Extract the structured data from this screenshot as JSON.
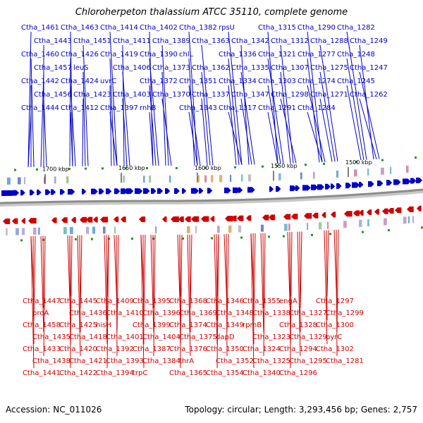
{
  "title": "Chloroherpeton thalassium ATCC 35110, complete genome",
  "accession": "Accession: NC_011026",
  "summary": "Topology: circular; Length: 3,293,456 bp; Genes: 2,757",
  "colors": {
    "forward": "#0000c8",
    "reverse": "#d00000",
    "backbone": "#8c8c8c",
    "marker": "#1a9a1a"
  },
  "ticks": [
    "1700 kbp",
    "1650 kbp",
    "1600 kbp",
    "1550 kbp",
    "1500 kbp"
  ],
  "forward_labels": [
    "Ctha_1461",
    "Ctha_1443",
    "Ctha_1460",
    "Ctha_1457",
    "Ctha_1442",
    "Ctha_1456",
    "Ctha_1444",
    "Ctha_1463",
    "Ctha_1451",
    "Ctha_1426",
    "leuS",
    "Ctha_1424",
    "Ctha_1423",
    "Ctha_1412",
    "Ctha_1414",
    "Ctha_1411",
    "Ctha_1419",
    "Ctha_1406",
    "uvrC",
    "Ctha_1403",
    "Ctha_1397",
    "Ctha_1402",
    "Ctha_1389",
    "Ctha_1390",
    "Ctha_1373",
    "Ctha_1372",
    "Ctha_1370",
    "rnhB",
    "Ctha_1382",
    "Ctha_1363",
    "chlL",
    "Ctha_1362",
    "Ctha_1351",
    "Ctha_1337",
    "Ctha_1343",
    "rpsU",
    "Ctha_1342",
    "Ctha_1336",
    "Ctha_1335",
    "Ctha_1334",
    "Ctha_1347",
    "Ctha_1317",
    "Ctha_1315",
    "Ctha_1312",
    "Ctha_1321",
    "Ctha_1307",
    "Ctha_1303",
    "Ctha_1298",
    "Ctha_1291",
    "Ctha_1290",
    "Ctha_1288",
    "Ctha_1277",
    "Ctha_1275",
    "Ctha_1274",
    "Ctha_1271",
    "Ctha_1284",
    "Ctha_1282",
    "Ctha_1249",
    "Ctha_1248",
    "Ctha_1247",
    "Ctha_1245",
    "Ctha_1262"
  ],
  "reverse_labels": [
    "Ctha_1447",
    "proA",
    "Ctha_1458",
    "Ctha_1435",
    "Ctha_1433",
    "Ctha_1438",
    "Ctha_1441",
    "Ctha_1445",
    "Ctha_1436",
    "Ctha_1425",
    "Ctha_1418",
    "Ctha_1420",
    "Ctha_1421",
    "Ctha_1422",
    "Ctha_1409",
    "Ctha_1410",
    "hisH",
    "Ctha_1401",
    "Ctha_1392",
    "Ctha_1393",
    "Ctha_1394",
    "Ctha_1395",
    "Ctha_1396",
    "Ctha_1399",
    "Ctha_1404",
    "Ctha_1387",
    "Ctha_1384",
    "trpC",
    "Ctha_1368",
    "Ctha_1369",
    "Ctha_1374",
    "Ctha_1375",
    "Ctha_1376",
    "thrA",
    "Ctha_1365",
    "Ctha_1346",
    "Ctha_1348",
    "Ctha_1349",
    "dapD",
    "Ctha_1350",
    "Ctha_1352",
    "Ctha_1354",
    "Ctha_1355",
    "Ctha_1338",
    "rpmB",
    "Ctha_1323",
    "Ctha_1324",
    "Ctha_1325",
    "Ctha_1340",
    "engA",
    "Ctha_1327",
    "Ctha_1328",
    "Ctha_1329",
    "Ctha_1294",
    "Ctha_1295",
    "Ctha_1296",
    "Ctha_1297",
    "Ctha_1299",
    "Ctha_1300",
    "pyrC",
    "Ctha_1302",
    "Ctha_1281"
  ]
}
